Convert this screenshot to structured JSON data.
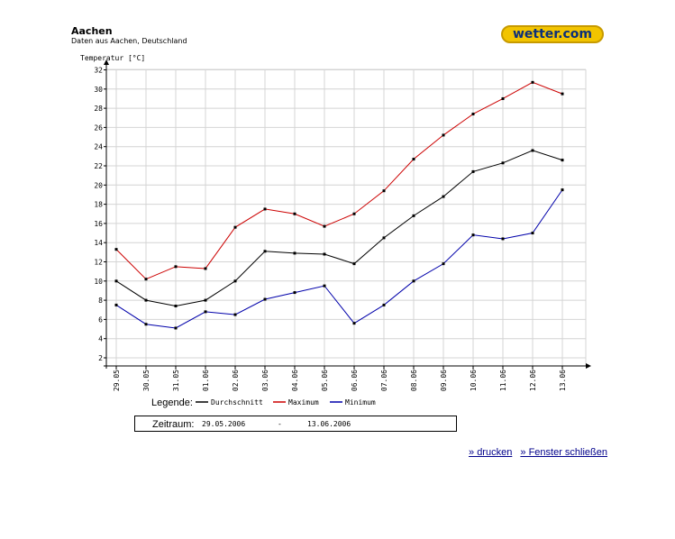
{
  "header": {
    "title": "Aachen",
    "subtitle": "Daten aus Aachen, Deutschland",
    "logo_text": "wetter.com"
  },
  "legend": {
    "label": "Legende:",
    "entries": [
      {
        "name": "Durchschnitt",
        "color": "#000000"
      },
      {
        "name": "Maximum",
        "color": "#cc0000"
      },
      {
        "name": "Minimum",
        "color": "#0000aa"
      }
    ]
  },
  "range": {
    "label": "Zeitraum:",
    "from": "29.05.2006",
    "separator": "-",
    "to": "13.06.2006"
  },
  "links": {
    "print": "» drucken",
    "close": "» Fenster schließen"
  },
  "chart_data": {
    "type": "line",
    "ylabel": "Temperatur [°C]",
    "ylim": [
      1,
      32
    ],
    "yticks": [
      2,
      4,
      6,
      8,
      10,
      12,
      14,
      16,
      18,
      20,
      22,
      24,
      26,
      28,
      30,
      32
    ],
    "categories": [
      "29.05",
      "30.05",
      "31.05",
      "01.06",
      "02.06",
      "03.06",
      "04.06",
      "05.06",
      "06.06",
      "07.06",
      "08.06",
      "09.06",
      "10.06",
      "11.06",
      "12.06",
      "13.06"
    ],
    "grid": true,
    "series": [
      {
        "name": "Durchschnitt",
        "color": "#000000",
        "values": [
          10.0,
          8.0,
          7.4,
          8.0,
          10.0,
          13.1,
          12.9,
          12.8,
          11.8,
          14.5,
          16.8,
          18.8,
          21.4,
          22.3,
          23.6,
          22.6
        ]
      },
      {
        "name": "Maximum",
        "color": "#cc0000",
        "values": [
          13.3,
          10.2,
          11.5,
          11.3,
          15.6,
          17.5,
          17.0,
          15.7,
          17.0,
          19.4,
          22.7,
          25.2,
          27.4,
          29.0,
          30.7,
          29.5
        ]
      },
      {
        "name": "Minimum",
        "color": "#0000aa",
        "values": [
          7.5,
          5.5,
          5.1,
          6.8,
          6.5,
          8.1,
          8.8,
          9.5,
          5.6,
          7.5,
          10.0,
          11.8,
          14.8,
          14.4,
          15.0,
          19.5
        ]
      }
    ]
  }
}
